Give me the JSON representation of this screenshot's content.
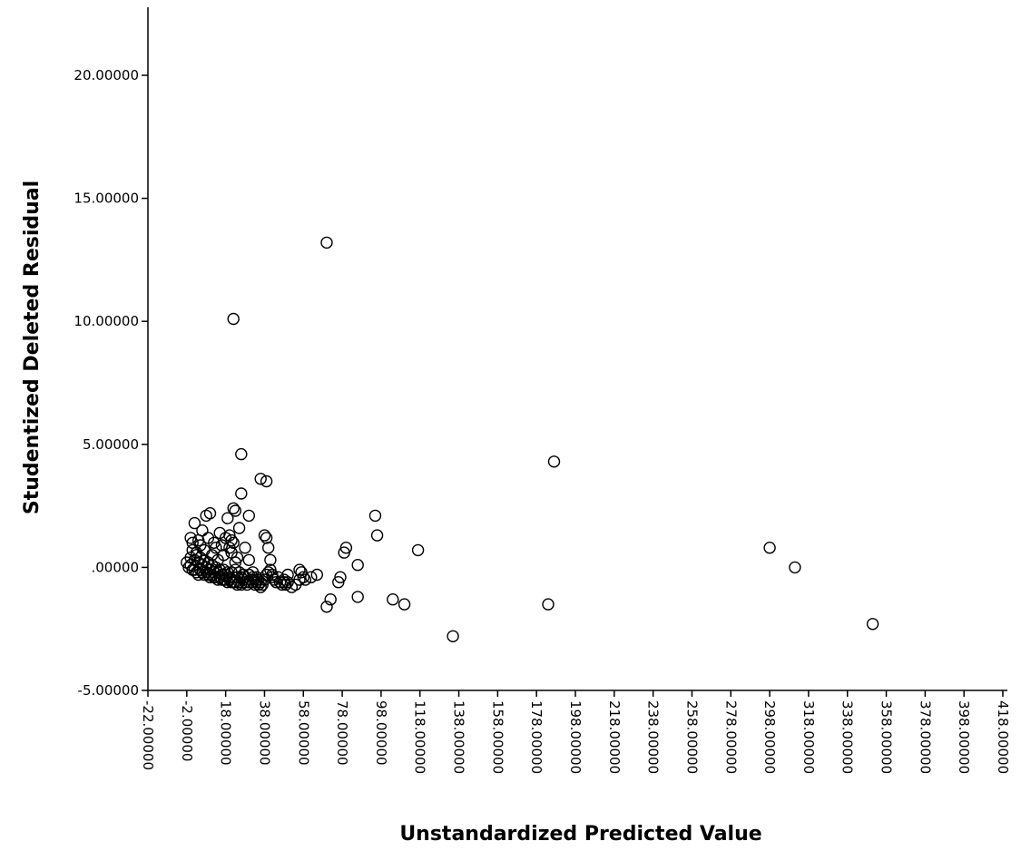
{
  "chart_data": {
    "type": "scatter",
    "title": "",
    "xlabel": "Unstandardized Predicted Value",
    "ylabel": "Studentized Deleted Residual",
    "xlim": [
      -22,
      418
    ],
    "ylim": [
      -5,
      20
    ],
    "xticks": [
      -22,
      -2,
      18,
      38,
      58,
      78,
      98,
      118,
      138,
      158,
      178,
      198,
      218,
      238,
      258,
      278,
      298,
      318,
      338,
      358,
      378,
      398,
      418
    ],
    "xtick_labels": [
      "-22.00000",
      "-2.00000",
      "18.00000",
      "38.00000",
      "58.00000",
      "78.00000",
      "98.00000",
      "118.00000",
      "138.00000",
      "158.00000",
      "178.00000",
      "198.00000",
      "218.00000",
      "238.00000",
      "258.00000",
      "278.00000",
      "298.00000",
      "318.00000",
      "338.00000",
      "358.00000",
      "378.00000",
      "398.00000",
      "418.00000"
    ],
    "yticks": [
      -5,
      0,
      5,
      10,
      15,
      20
    ],
    "ytick_labels": [
      "-5.00000",
      ".00000",
      "5.00000",
      "10.00000",
      "15.00000",
      "20.00000"
    ],
    "grid": false,
    "marker": "open-circle",
    "points": [
      [
        -2,
        0.2
      ],
      [
        -1,
        0.0
      ],
      [
        0,
        0.1
      ],
      [
        1,
        -0.1
      ],
      [
        2,
        -0.1
      ],
      [
        3,
        -0.2
      ],
      [
        4,
        -0.3
      ],
      [
        5,
        -0.1
      ],
      [
        6,
        -0.2
      ],
      [
        7,
        -0.3
      ],
      [
        8,
        -0.2
      ],
      [
        9,
        -0.3
      ],
      [
        10,
        -0.4
      ],
      [
        11,
        -0.3
      ],
      [
        12,
        -0.4
      ],
      [
        13,
        -0.4
      ],
      [
        14,
        -0.5
      ],
      [
        15,
        -0.4
      ],
      [
        16,
        -0.5
      ],
      [
        17,
        -0.5
      ],
      [
        18,
        -0.5
      ],
      [
        19,
        -0.6
      ],
      [
        20,
        -0.5
      ],
      [
        21,
        -0.6
      ],
      [
        22,
        -0.6
      ],
      [
        23,
        -0.6
      ],
      [
        24,
        -0.7
      ],
      [
        25,
        -0.6
      ],
      [
        26,
        -0.7
      ],
      [
        27,
        -0.5
      ],
      [
        28,
        -0.6
      ],
      [
        29,
        -0.7
      ],
      [
        30,
        -0.6
      ],
      [
        31,
        -0.5
      ],
      [
        32,
        -0.6
      ],
      [
        33,
        -0.7
      ],
      [
        34,
        -0.6
      ],
      [
        35,
        -0.5
      ],
      [
        36,
        -0.6
      ],
      [
        37,
        -0.7
      ],
      [
        0,
        0.4
      ],
      [
        2,
        0.3
      ],
      [
        4,
        0.2
      ],
      [
        6,
        0.1
      ],
      [
        8,
        0.0
      ],
      [
        10,
        -0.1
      ],
      [
        12,
        -0.2
      ],
      [
        14,
        -0.2
      ],
      [
        16,
        -0.3
      ],
      [
        18,
        -0.3
      ],
      [
        20,
        -0.4
      ],
      [
        22,
        -0.4
      ],
      [
        24,
        -0.4
      ],
      [
        26,
        -0.4
      ],
      [
        28,
        -0.4
      ],
      [
        30,
        -0.3
      ],
      [
        32,
        -0.4
      ],
      [
        34,
        -0.4
      ],
      [
        1,
        0.7
      ],
      [
        3,
        0.5
      ],
      [
        5,
        0.4
      ],
      [
        7,
        0.3
      ],
      [
        9,
        0.2
      ],
      [
        11,
        0.1
      ],
      [
        13,
        0.0
      ],
      [
        15,
        -0.1
      ],
      [
        17,
        -0.1
      ],
      [
        19,
        -0.2
      ],
      [
        21,
        -0.2
      ],
      [
        23,
        -0.1
      ],
      [
        25,
        -0.2
      ],
      [
        27,
        -0.3
      ],
      [
        0,
        1.2
      ],
      [
        1,
        1.0
      ],
      [
        2,
        1.8
      ],
      [
        4,
        1.1
      ],
      [
        6,
        1.5
      ],
      [
        8,
        2.1
      ],
      [
        9,
        1.2
      ],
      [
        10,
        2.2
      ],
      [
        12,
        1.0
      ],
      [
        13,
        0.8
      ],
      [
        15,
        1.4
      ],
      [
        16,
        0.9
      ],
      [
        18,
        1.2
      ],
      [
        19,
        2.0
      ],
      [
        20,
        1.3
      ],
      [
        21,
        0.6
      ],
      [
        22,
        2.4
      ],
      [
        22,
        1.0
      ],
      [
        23,
        2.3
      ],
      [
        24,
        0.4
      ],
      [
        25,
        1.6
      ],
      [
        26,
        3.0
      ],
      [
        28,
        0.8
      ],
      [
        30,
        0.3
      ],
      [
        32,
        -0.2
      ],
      [
        34,
        -0.5
      ],
      [
        35,
        -0.7
      ],
      [
        36,
        -0.8
      ],
      [
        3,
        0.6
      ],
      [
        5,
        0.9
      ],
      [
        7,
        0.7
      ],
      [
        11,
        0.5
      ],
      [
        14,
        0.3
      ],
      [
        17,
        0.5
      ],
      [
        20,
        0.8
      ],
      [
        21,
        1.1
      ],
      [
        23,
        0.2
      ],
      [
        38,
        -0.5
      ],
      [
        39,
        -0.3
      ],
      [
        40,
        -0.2
      ],
      [
        41,
        -0.1
      ],
      [
        42,
        -0.3
      ],
      [
        43,
        -0.5
      ],
      [
        44,
        -0.6
      ],
      [
        45,
        -0.4
      ],
      [
        46,
        -0.6
      ],
      [
        47,
        -0.7
      ],
      [
        48,
        -0.6
      ],
      [
        49,
        -0.7
      ],
      [
        50,
        -0.6
      ],
      [
        52,
        -0.8
      ],
      [
        54,
        -0.7
      ],
      [
        56,
        -0.5
      ],
      [
        58,
        -0.4
      ],
      [
        59,
        -0.5
      ],
      [
        30,
        2.1
      ],
      [
        36,
        3.6
      ],
      [
        39,
        3.5
      ],
      [
        38,
        1.3
      ],
      [
        39,
        1.2
      ],
      [
        40,
        0.8
      ],
      [
        41,
        0.3
      ],
      [
        42,
        -0.4
      ],
      [
        48,
        -0.5
      ],
      [
        50,
        -0.3
      ],
      [
        56,
        -0.1
      ],
      [
        57,
        -0.2
      ],
      [
        62,
        -0.4
      ],
      [
        65,
        -0.3
      ],
      [
        70,
        -1.6
      ],
      [
        72,
        -1.3
      ],
      [
        76,
        -0.6
      ],
      [
        77,
        -0.4
      ],
      [
        79,
        0.6
      ],
      [
        80,
        0.8
      ],
      [
        86,
        0.1
      ],
      [
        86,
        -1.2
      ],
      [
        95,
        2.1
      ],
      [
        96,
        1.3
      ],
      [
        104,
        -1.3
      ],
      [
        110,
        -1.5
      ],
      [
        117,
        0.7
      ],
      [
        135,
        -2.8
      ],
      [
        184,
        -1.5
      ],
      [
        187,
        4.3
      ],
      [
        298,
        0.8
      ],
      [
        311,
        0.0
      ],
      [
        351,
        -2.3
      ],
      [
        70,
        13.2
      ],
      [
        22,
        10.1
      ],
      [
        26,
        4.6
      ]
    ]
  }
}
